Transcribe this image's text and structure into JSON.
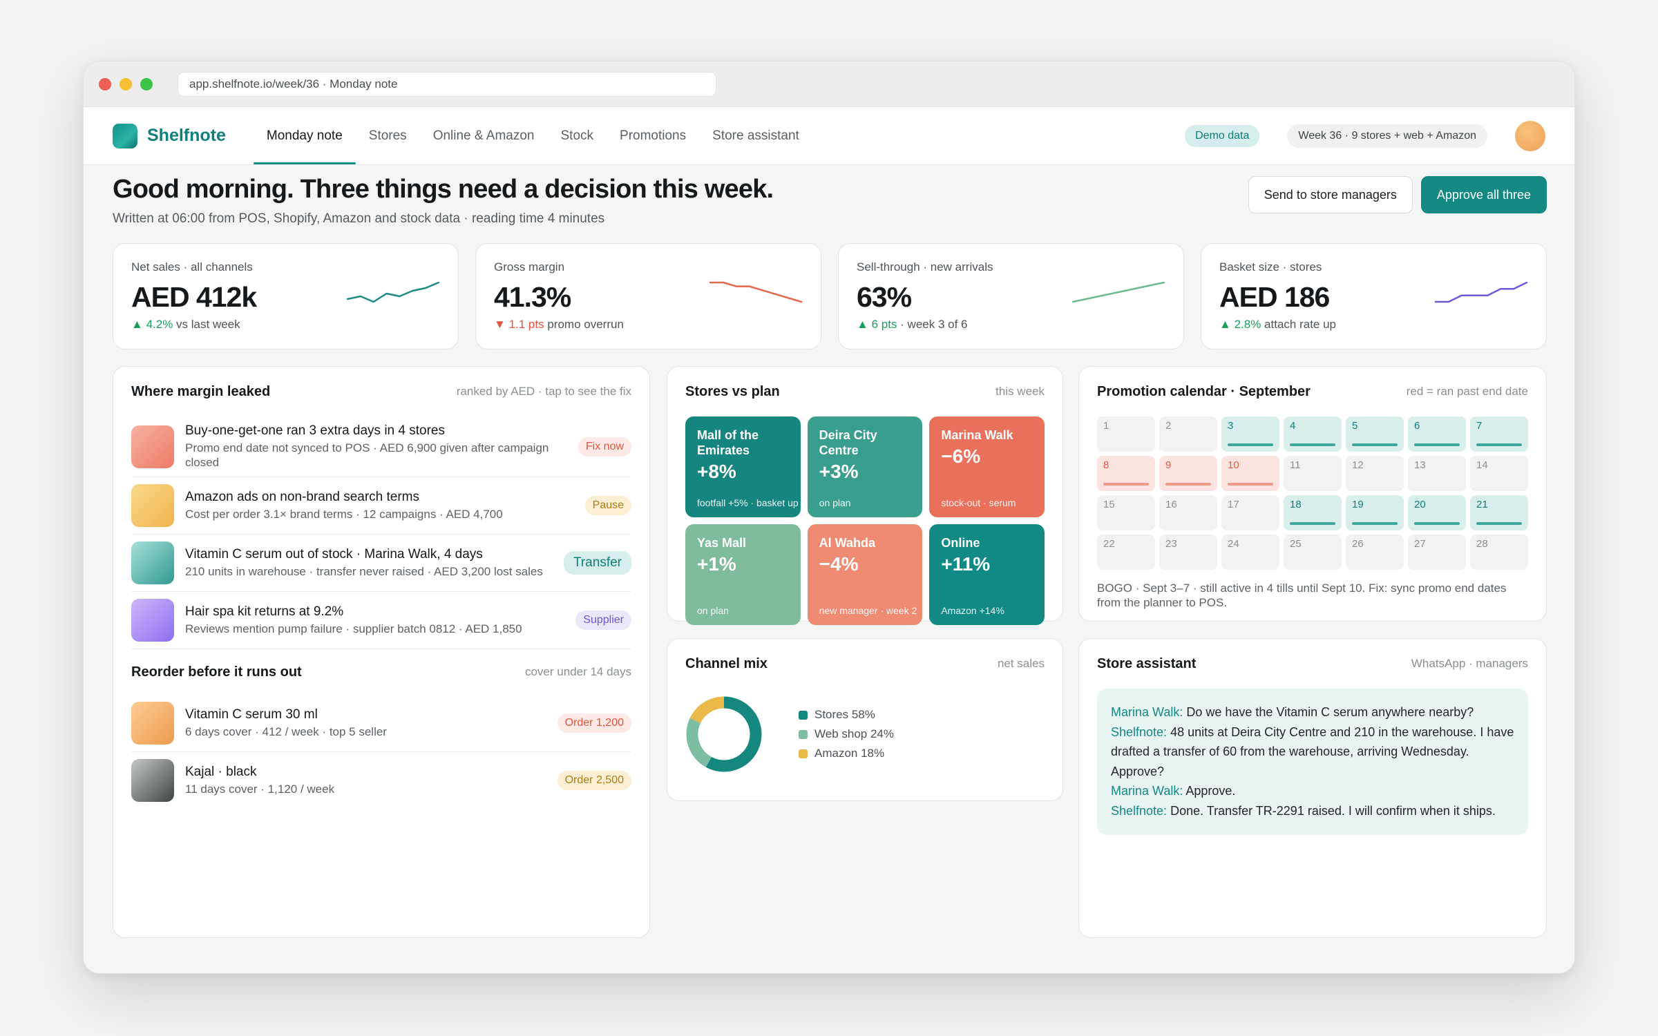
{
  "browser": {
    "url": "app.shelfnote.io/week/36 · Monday note"
  },
  "nav": {
    "brand": "Shelfnote",
    "tabs": [
      "Monday note",
      "Stores",
      "Online & Amazon",
      "Stock",
      "Promotions",
      "Store assistant"
    ],
    "active_tab": "Monday note",
    "demo_badge": "Demo data",
    "week_badge": "Week 36 · 9 stores + web + Amazon"
  },
  "header": {
    "title": "Good morning. Three things need a decision this week.",
    "subtitle": "Written at 06:00 from POS, Shopify, Amazon and stock data · reading time 4 minutes",
    "send_button": "Send to store managers",
    "approve_button": "Approve all three"
  },
  "kpis": [
    {
      "label": "Net sales · all channels",
      "value": "AED 412k",
      "arrow": "▲",
      "delta": "4.2%",
      "note": "vs last week",
      "direction": "up",
      "spark_color": "#1b8c84",
      "spark": [
        3,
        4,
        2,
        5,
        4,
        6,
        7,
        9
      ]
    },
    {
      "label": "Gross margin",
      "value": "41.3%",
      "arrow": "▼",
      "delta": "1.1 pts",
      "note": "promo overrun",
      "direction": "down",
      "spark_color": "#e5664c",
      "spark": [
        8,
        8,
        7,
        7,
        6,
        5,
        4,
        3
      ]
    },
    {
      "label": "Sell-through · new arrivals",
      "value": "63%",
      "arrow": "▲",
      "delta": "6 pts",
      "note": "· week 3 of 6",
      "direction": "up",
      "spark_color": "#6cba8e",
      "spark": [
        1,
        2,
        3,
        4,
        5,
        6,
        7,
        8
      ]
    },
    {
      "label": "Basket size · stores",
      "value": "AED 186",
      "arrow": "▲",
      "delta": "2.8%",
      "note": "attach rate up",
      "direction": "up",
      "spark_color": "#6b5ad9",
      "spark": [
        5,
        5,
        6,
        6,
        6,
        7,
        7,
        8
      ]
    }
  ],
  "leaks": {
    "title": "Where margin leaked",
    "note": "ranked by AED · tap to see the fix",
    "items": [
      {
        "title": "Buy-one-get-one ran 3 extra days in 4 stores",
        "sub": "Promo end date not synced to POS · AED 6,900 given after campaign closed",
        "action": "Fix now",
        "tone": "red",
        "thumb": "linear-gradient(135deg,#f6b1a2,#ee7a66)"
      },
      {
        "title": "Amazon ads on non-brand search terms",
        "sub": "Cost per order 3.1× brand terms · 12 campaigns · AED 4,700",
        "action": "Pause",
        "tone": "amber",
        "thumb": "linear-gradient(135deg,#f9d98a,#f0b24c)"
      },
      {
        "title": "Vitamin C serum out of stock · Marina Walk, 4 days",
        "sub": "210 units in warehouse · transfer never raised · AED 3,200 lost sales",
        "action": "Transfer",
        "tone": "teal",
        "thumb": "linear-gradient(135deg,#a6e0d8,#2f9a92)"
      },
      {
        "title": "Hair spa kit returns at 9.2%",
        "sub": "Reviews mention pump failure · supplier batch 0812 · AED 1,850",
        "action": "Supplier",
        "tone": "violet",
        "thumb": "linear-gradient(135deg,#cdb8fb,#8b6ef0)"
      }
    ]
  },
  "reorder": {
    "title": "Reorder before it runs out",
    "note": "cover under 14 days",
    "items": [
      {
        "title": "Vitamin C serum 30 ml",
        "sub": "6 days cover · 412 / week · top 5 seller",
        "action": "Order 1,200",
        "tone": "red",
        "thumb": "linear-gradient(135deg,#fbcd95,#ef9a4d)"
      },
      {
        "title": "Kajal · black",
        "sub": "11 days cover · 1,120 / week",
        "action": "Order 2,500",
        "tone": "amber",
        "thumb": "linear-gradient(135deg,#c5c8c6,#3f4442)"
      }
    ]
  },
  "stores": {
    "title": "Stores vs plan",
    "note": "this week",
    "tiles": [
      {
        "name": "Mall of the Emirates",
        "value": "+8%",
        "note": "footfall +5% · basket up",
        "color": "#15857f"
      },
      {
        "name": "Deira City Centre",
        "value": "+3%",
        "note": "on plan",
        "color": "#3a9e8f"
      },
      {
        "name": "Marina Walk",
        "value": "−6%",
        "note": "stock-out · serum",
        "color": "#e9705a"
      },
      {
        "name": "Yas Mall",
        "value": "+1%",
        "note": "on plan",
        "color": "#7ebc9b"
      },
      {
        "name": "Al Wahda",
        "value": "−4%",
        "note": "new manager · week 2",
        "color": "#ef8b73"
      },
      {
        "name": "Online",
        "value": "+11%",
        "note": "Amazon +14%",
        "color": "#118a86"
      }
    ]
  },
  "promo": {
    "title": "Promotion calendar · September",
    "note": "red = ran past end date",
    "days": [
      1,
      2,
      3,
      4,
      5,
      6,
      7,
      8,
      9,
      10,
      11,
      12,
      13,
      14,
      15,
      16,
      17,
      18,
      19,
      20,
      21,
      22,
      23,
      24,
      25,
      26,
      27,
      28
    ],
    "active_days": [
      3,
      4,
      5,
      6,
      7,
      18,
      19,
      20,
      21
    ],
    "overrun_days": [
      8,
      9,
      10
    ],
    "footnote": "BOGO · Sept 3–7 · still active in 4 tills until Sept 10. Fix: sync promo end dates from the planner to POS."
  },
  "channels": {
    "title": "Channel mix",
    "note": "net sales",
    "chart_data": {
      "type": "pie",
      "categories": [
        "Stores",
        "Web shop",
        "Amazon"
      ],
      "values": [
        58,
        24,
        18
      ],
      "colors": [
        "#14877f",
        "#7dbda2",
        "#ebb94a"
      ],
      "labels": [
        "Stores 58%",
        "Web shop 24%",
        "Amazon 18%"
      ]
    }
  },
  "assistant": {
    "title": "Store assistant",
    "note": "WhatsApp · managers",
    "messages": [
      {
        "who": "Marina Walk:",
        "text": " Do we have the Vitamin C serum anywhere nearby?"
      },
      {
        "who": "Shelfnote:",
        "text": " 48 units at Deira City Centre and 210 in the warehouse. I have drafted a transfer of 60 from the warehouse, arriving Wednesday. Approve?"
      },
      {
        "who": "Marina Walk:",
        "text": " Approve."
      },
      {
        "who": "Shelfnote:",
        "text": " Done. Transfer TR-2291 raised. I will confirm when it ships."
      }
    ]
  }
}
